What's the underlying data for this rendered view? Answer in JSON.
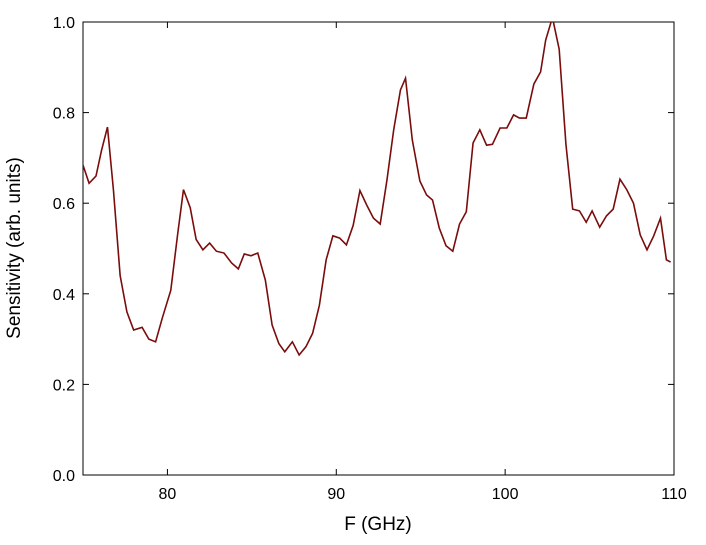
{
  "chart_data": {
    "type": "line",
    "xlabel": "F (GHz)",
    "ylabel": "Sensitivity (arb. units)",
    "x": [
      75,
      75.36,
      75.77,
      76.1,
      76.45,
      76.8,
      77.2,
      77.6,
      78.0,
      78.5,
      78.9,
      79.3,
      79.7,
      80.2,
      80.6,
      80.95,
      81.35,
      81.7,
      82.1,
      82.5,
      82.9,
      83.35,
      83.8,
      84.2,
      84.55,
      84.95,
      85.35,
      85.8,
      86.2,
      86.6,
      86.95,
      87.4,
      87.8,
      88.2,
      88.6,
      89.0,
      89.4,
      89.8,
      90.2,
      90.6,
      91.0,
      91.4,
      91.8,
      92.2,
      92.6,
      93.0,
      93.4,
      93.8,
      94.1,
      94.5,
      94.95,
      95.35,
      95.7,
      96.1,
      96.5,
      96.9,
      97.3,
      97.7,
      98.1,
      98.5,
      98.9,
      99.25,
      99.7,
      100.1,
      100.5,
      100.85,
      101.25,
      101.7,
      102.1,
      102.4,
      102.8,
      103.2,
      103.6,
      104.0,
      104.4,
      104.8,
      105.15,
      105.6,
      106.0,
      106.4,
      106.8,
      107.2,
      107.6,
      108.0,
      108.4,
      108.8,
      109.2,
      109.55,
      109.8
    ],
    "series": [
      {
        "name": "Sensitivity",
        "color": "#7a0c0c",
        "values": [
          0.684,
          0.644,
          0.66,
          0.717,
          0.768,
          0.63,
          0.44,
          0.36,
          0.32,
          0.326,
          0.3,
          0.294,
          0.347,
          0.408,
          0.53,
          0.63,
          0.59,
          0.52,
          0.497,
          0.512,
          0.494,
          0.49,
          0.468,
          0.455,
          0.488,
          0.484,
          0.49,
          0.43,
          0.331,
          0.29,
          0.272,
          0.294,
          0.265,
          0.283,
          0.313,
          0.375,
          0.475,
          0.528,
          0.523,
          0.508,
          0.551,
          0.628,
          0.596,
          0.567,
          0.554,
          0.651,
          0.762,
          0.85,
          0.876,
          0.74,
          0.649,
          0.618,
          0.607,
          0.545,
          0.506,
          0.494,
          0.554,
          0.581,
          0.733,
          0.762,
          0.728,
          0.73,
          0.766,
          0.766,
          0.795,
          0.788,
          0.788,
          0.863,
          0.89,
          0.96,
          1.01,
          0.94,
          0.73,
          0.587,
          0.583,
          0.558,
          0.583,
          0.547,
          0.572,
          0.587,
          0.653,
          0.63,
          0.6,
          0.53,
          0.497,
          0.528,
          0.567,
          0.475,
          0.47
        ]
      }
    ],
    "xlim": [
      75,
      110
    ],
    "xticks": [
      80,
      90,
      100,
      110
    ],
    "ylim": [
      0,
      1
    ],
    "yticks": [
      {
        "value": 0,
        "label": "0.0"
      },
      0.2,
      0.4,
      0.6,
      0.8,
      {
        "value": 1,
        "label": "1.0"
      }
    ],
    "grid": false
  }
}
